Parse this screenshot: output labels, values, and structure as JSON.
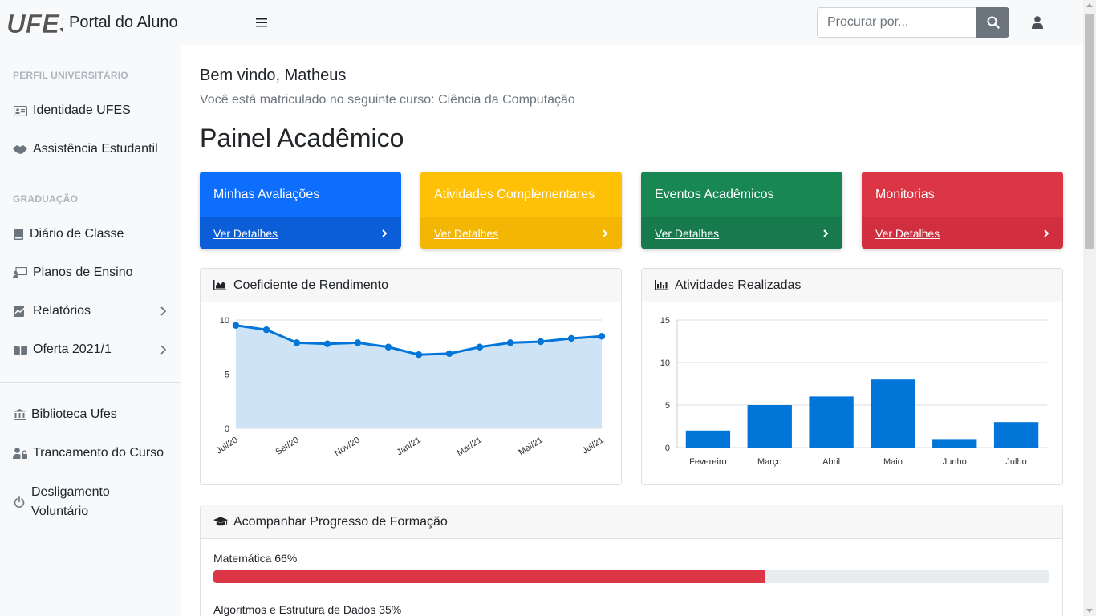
{
  "header": {
    "logo_text": "UFES",
    "brand": "Portal do Aluno",
    "search_placeholder": "Procurar por..."
  },
  "sidebar": {
    "sections": [
      {
        "heading": "Perfil Universitário"
      },
      {
        "heading": "Graduação"
      }
    ],
    "items": [
      {
        "label": "Identidade UFES",
        "icon": "id-card-icon"
      },
      {
        "label": "Assistência Estudantil",
        "icon": "handshake-icon"
      },
      {
        "label": "Diário de Classe",
        "icon": "book-icon"
      },
      {
        "label": "Planos de Ensino",
        "icon": "teacher-icon"
      },
      {
        "label": "Relatórios",
        "icon": "chart-report-icon"
      },
      {
        "label": "Oferta 2021/1",
        "icon": "open-book-icon"
      },
      {
        "label": "Biblioteca Ufes",
        "icon": "library-icon"
      },
      {
        "label": "Trancamento do Curso",
        "icon": "user-lock-icon"
      },
      {
        "label": "Desligamento Voluntário",
        "icon": "power-icon"
      }
    ]
  },
  "main": {
    "welcome": "Bem vindo, Matheus",
    "course": "Você está matriculado no seguinte curso: Ciência da Computação",
    "title": "Painel Acadêmico",
    "cards": [
      {
        "title": "Minhas Avaliações",
        "link": "Ver Detalhes",
        "color": "#0d6efd"
      },
      {
        "title": "Atividades Complementares",
        "link": "Ver Detalhes",
        "color": "#ffc107"
      },
      {
        "title": "Eventos Acadêmicos",
        "link": "Ver Detalhes",
        "color": "#198754"
      },
      {
        "title": "Monitorias",
        "link": "Ver Detalhes",
        "color": "#dc3545"
      }
    ],
    "cr_panel_title": "Coeficiente de Rendimento",
    "activities_panel_title": "Atividades Realizadas",
    "progress_panel_title": "Acompanhar Progresso de Formação",
    "progress": [
      {
        "label": "Matemática 66%",
        "value": 66
      },
      {
        "label": "Algoritmos e Estrutura de Dados 35%",
        "value": 35
      }
    ]
  },
  "chart_data": [
    {
      "type": "area",
      "x_labels": [
        "Jul/20",
        "Set/20",
        "Nov/20",
        "Jan/21",
        "Mar/21",
        "Mai/21",
        "Jul/21"
      ],
      "values": [
        9.5,
        9.1,
        7.9,
        7.8,
        7.9,
        7.5,
        6.8,
        6.9,
        7.5,
        7.9,
        8.0,
        8.3,
        8.5
      ],
      "ylim": [
        0,
        10
      ],
      "y_ticks": [
        0,
        5,
        10
      ],
      "line_color": "#0275d8",
      "fill_color": "#cfe3f7",
      "grid": true
    },
    {
      "type": "bar",
      "categories": [
        "Fevereiro",
        "Março",
        "Abril",
        "Maio",
        "Junho",
        "Julho"
      ],
      "values": [
        2,
        5,
        6,
        8,
        1,
        3
      ],
      "ylim": [
        0,
        15
      ],
      "y_ticks": [
        0,
        5,
        10,
        15
      ],
      "bar_color": "#0275d8",
      "grid": true
    }
  ]
}
